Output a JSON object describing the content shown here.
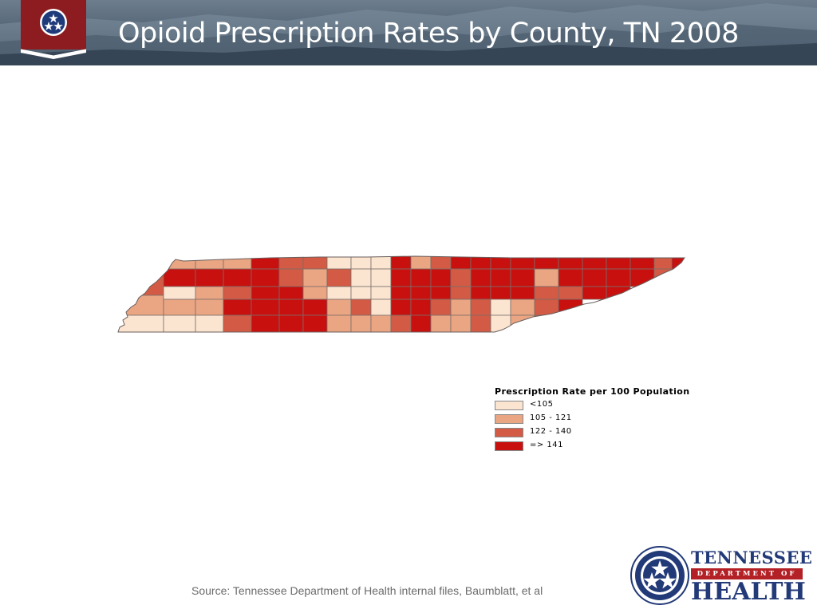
{
  "header": {
    "title": "Opioid Prescription Rates by County, TN 2008"
  },
  "legend": {
    "title": "Prescription Rate per 100 Population",
    "classes": [
      {
        "label": "<105",
        "color": "#fbe5d1"
      },
      {
        "label": "105 - 121",
        "color": "#eaa583"
      },
      {
        "label": "122 - 140",
        "color": "#d35a44"
      },
      {
        "label": "=> 141",
        "color": "#c8100f"
      }
    ]
  },
  "source": "Source: Tennessee Department of Health internal files, Baumblatt, et al",
  "logo": {
    "line1": "TENNESSEE",
    "line2": "DEPARTMENT OF",
    "line3": "HEALTH"
  },
  "colors": {
    "accent_blue": "#233a78",
    "accent_red": "#b32025"
  }
}
